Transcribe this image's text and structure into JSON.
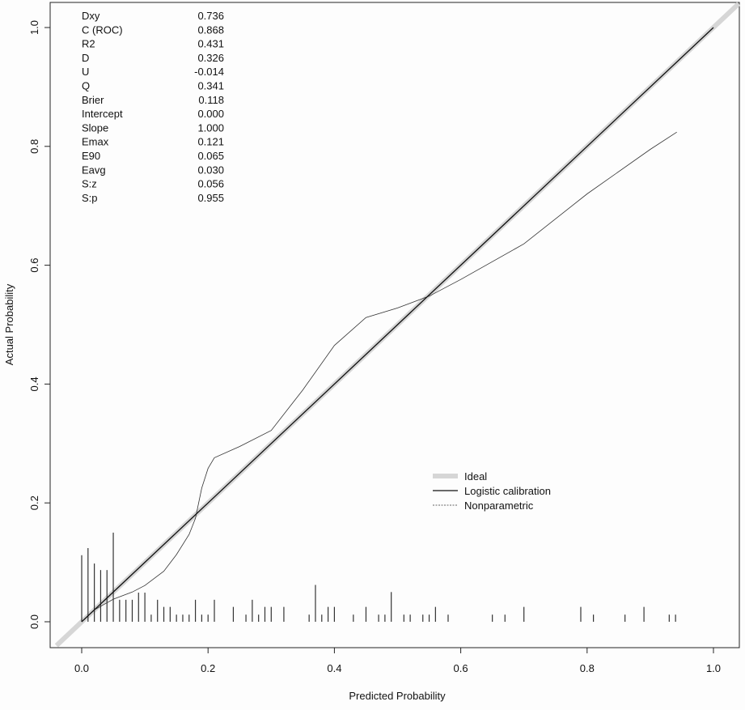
{
  "chart_data": {
    "type": "line",
    "title": "",
    "xlabel": "Predicted Probability",
    "ylabel": "Actual Probability",
    "xlim": [
      -0.04,
      1.04
    ],
    "ylim": [
      -0.04,
      1.04
    ],
    "x_ticks": [
      "0.0",
      "0.2",
      "0.4",
      "0.6",
      "0.8",
      "1.0"
    ],
    "y_ticks": [
      "0.0",
      "0.2",
      "0.4",
      "0.6",
      "0.8",
      "1.0"
    ],
    "grid": false,
    "legend_position": "center-right",
    "legend": [
      {
        "label": "Ideal",
        "style": "thick-gray"
      },
      {
        "label": "Logistic calibration",
        "style": "solid"
      },
      {
        "label": "Nonparametric",
        "style": "dashed"
      }
    ],
    "stats": [
      {
        "label": "Dxy",
        "value": "0.736"
      },
      {
        "label": "C (ROC)",
        "value": "0.868"
      },
      {
        "label": "R2",
        "value": "0.431"
      },
      {
        "label": "D",
        "value": "0.326"
      },
      {
        "label": "U",
        "value": "-0.014"
      },
      {
        "label": "Q",
        "value": "0.341"
      },
      {
        "label": "Brier",
        "value": "0.118"
      },
      {
        "label": "Intercept",
        "value": "0.000"
      },
      {
        "label": "Slope",
        "value": "1.000"
      },
      {
        "label": "Emax",
        "value": "0.121"
      },
      {
        "label": "E90",
        "value": "0.065"
      },
      {
        "label": "Eavg",
        "value": "0.030"
      },
      {
        "label": "S:z",
        "value": "0.056"
      },
      {
        "label": "S:p",
        "value": "0.955"
      }
    ],
    "series": [
      {
        "name": "Ideal",
        "x": [
          -0.04,
          1.04
        ],
        "y": [
          -0.04,
          1.04
        ]
      },
      {
        "name": "Logistic calibration",
        "x": [
          0.0,
          1.0
        ],
        "y": [
          0.0,
          1.0
        ]
      },
      {
        "name": "Nonparametric",
        "x": [
          0.0,
          0.02,
          0.05,
          0.08,
          0.1,
          0.13,
          0.15,
          0.17,
          0.18,
          0.19,
          0.2,
          0.21,
          0.25,
          0.3,
          0.35,
          0.4,
          0.45,
          0.5,
          0.55,
          0.6,
          0.7,
          0.8,
          0.9,
          0.942
        ],
        "y": [
          0.0,
          0.02,
          0.038,
          0.05,
          0.061,
          0.085,
          0.113,
          0.147,
          0.174,
          0.225,
          0.258,
          0.276,
          0.295,
          0.322,
          0.39,
          0.465,
          0.512,
          0.528,
          0.548,
          0.576,
          0.636,
          0.72,
          0.795,
          0.824
        ]
      }
    ],
    "rug": {
      "x": [
        0.0,
        0.01,
        0.02,
        0.03,
        0.04,
        0.05,
        0.06,
        0.07,
        0.08,
        0.09,
        0.1,
        0.11,
        0.12,
        0.13,
        0.14,
        0.15,
        0.16,
        0.17,
        0.18,
        0.19,
        0.2,
        0.21,
        0.24,
        0.26,
        0.27,
        0.28,
        0.29,
        0.3,
        0.32,
        0.36,
        0.37,
        0.38,
        0.39,
        0.4,
        0.43,
        0.45,
        0.47,
        0.48,
        0.49,
        0.51,
        0.52,
        0.54,
        0.55,
        0.56,
        0.58,
        0.65,
        0.67,
        0.7,
        0.79,
        0.81,
        0.86,
        0.89,
        0.93,
        0.94
      ],
      "height": [
        0.112,
        0.124,
        0.098,
        0.087,
        0.087,
        0.15,
        0.037,
        0.037,
        0.037,
        0.049,
        0.049,
        0.012,
        0.037,
        0.025,
        0.025,
        0.012,
        0.012,
        0.012,
        0.037,
        0.012,
        0.012,
        0.037,
        0.025,
        0.012,
        0.037,
        0.012,
        0.025,
        0.025,
        0.025,
        0.012,
        0.062,
        0.012,
        0.025,
        0.025,
        0.012,
        0.025,
        0.012,
        0.012,
        0.05,
        0.012,
        0.012,
        0.012,
        0.012,
        0.025,
        0.012,
        0.012,
        0.012,
        0.025,
        0.025,
        0.012,
        0.012,
        0.025,
        0.012,
        0.012
      ]
    }
  }
}
